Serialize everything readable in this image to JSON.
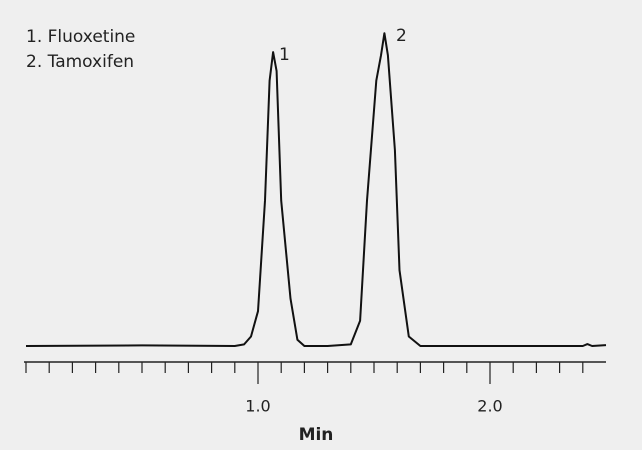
{
  "chart_data": {
    "type": "line",
    "legend_items": [
      "1. Fluoxetine",
      "2. Tamoxifen"
    ],
    "peak_labels": [
      "1",
      "2"
    ],
    "x_label": "Min",
    "xlim": [
      0,
      2.5
    ],
    "xticks": [
      {
        "value": 1,
        "label": "1.0"
      },
      {
        "value": 2,
        "label": "2.0"
      }
    ],
    "xminorticks": [
      0,
      0.1,
      0.2,
      0.3,
      0.4,
      0.5,
      0.6,
      0.7,
      0.8,
      0.9,
      1.1,
      1.2,
      1.3,
      1.4,
      1.5,
      1.6,
      1.7,
      1.8,
      1.9,
      2.1,
      2.2,
      2.3,
      2.4
    ],
    "ylim": [
      0,
      100
    ],
    "series": [
      {
        "color": "#111111",
        "x": [
          0,
          0.5,
          0.9,
          0.94,
          0.97,
          1.0,
          1.03,
          1.05,
          1.065,
          1.08,
          1.1,
          1.14,
          1.17,
          1.2,
          1.3,
          1.4,
          1.44,
          1.47,
          1.51,
          1.53,
          1.545,
          1.56,
          1.59,
          1.61,
          1.65,
          1.7,
          2.0,
          2.4,
          2.42,
          2.44,
          2.5
        ],
        "values": [
          0,
          0.2,
          0,
          0.5,
          3,
          11,
          46,
          84,
          93,
          87,
          46,
          15,
          2,
          0,
          0,
          0.5,
          8,
          46,
          84,
          92,
          99,
          92,
          62,
          24,
          3,
          0,
          0,
          0,
          0.6,
          0,
          0.3
        ]
      }
    ]
  }
}
